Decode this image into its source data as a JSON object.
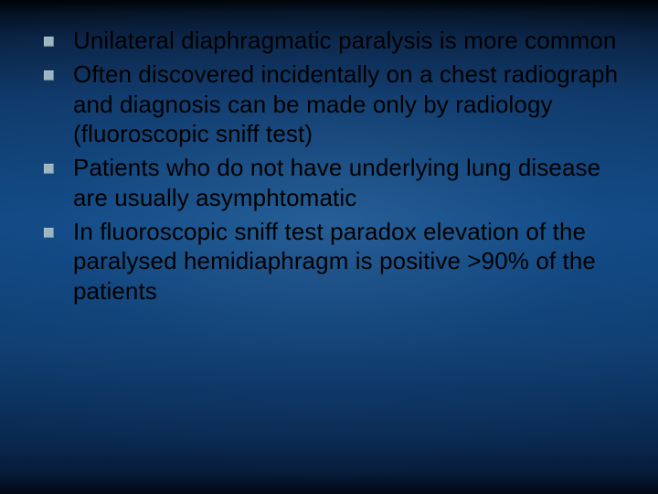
{
  "slide": {
    "background": {
      "gradient_stops": [
        "#020a14",
        "#0a2345",
        "#0e3868",
        "#0f4a85",
        "#0e3d70",
        "#0a2a52",
        "#04142c"
      ],
      "radial_glow": "#5082b4"
    },
    "bullet_marker_color": "#9db5c0",
    "text_color": "#000000",
    "font_family": "Verdana",
    "font_size_pt": 20,
    "line_height": 1.26,
    "bullets": [
      {
        "text": "Unilateral diaphragmatic paralysis is more common"
      },
      {
        "text": "Often discovered incidentally on a chest radiograph and diagnosis can be made only by radiology (fluoroscopic sniff test)"
      },
      {
        "text": "Patients who do not have underlying lung disease are usually asymphtomatic"
      },
      {
        "text": "In fluoroscopic sniff test paradox elevation of the paralysed hemidiaphragm is positive >90% of the patients"
      }
    ]
  }
}
